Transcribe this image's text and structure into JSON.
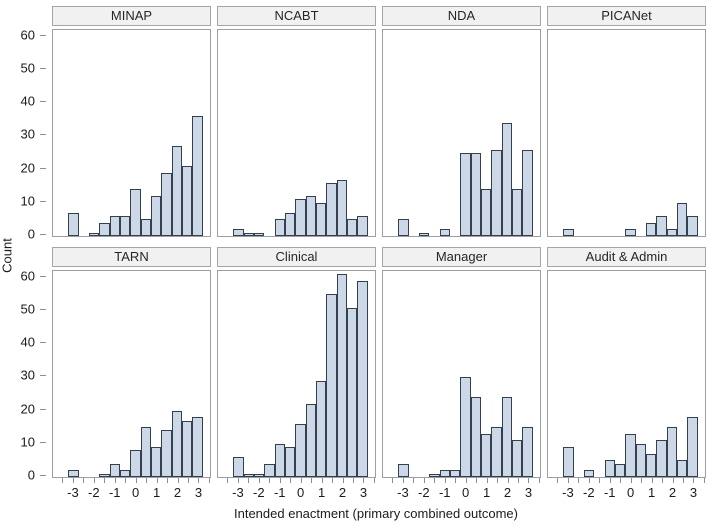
{
  "figure": {
    "y_axis_title": "Count",
    "x_axis_title": "Intended enactment (primary combined outcome)"
  },
  "chart_data": {
    "type": "bar",
    "subtype": "histogram-lattice",
    "layout": "2 rows x 4 columns of panels, shared axes",
    "xlabel": "Intended enactment (primary combined outcome)",
    "ylabel": "Count",
    "x": [
      -3,
      -2.5,
      -2,
      -1.5,
      -1,
      -0.5,
      0,
      0.5,
      1,
      1.5,
      2,
      2.5,
      3
    ],
    "bin_width": 0.5,
    "x_tick_labels": [
      "-3",
      "-2",
      "-1",
      "0",
      "1",
      "2",
      "3"
    ],
    "x_major_ticks": [
      -3,
      -2,
      -1,
      0,
      1,
      2,
      3
    ],
    "x_minor_tick_step": 0.5,
    "x_range": [
      -4,
      3.6
    ],
    "yticks": [
      0,
      10,
      20,
      30,
      40,
      50,
      60
    ],
    "ylim": [
      0,
      62
    ],
    "grid": "off",
    "bar_fill": "#ccd8e7",
    "bar_stroke": "#36404d",
    "header_fill": "#f1f1f1",
    "frame_stroke": "#9aa0a5",
    "series": [
      {
        "name": "MINAP",
        "values": [
          7,
          0,
          1,
          4,
          6,
          6,
          14,
          5,
          12,
          19,
          27,
          21,
          36
        ]
      },
      {
        "name": "NCABT",
        "values": [
          2,
          1,
          1,
          0,
          5,
          7,
          11,
          12,
          10,
          16,
          17,
          5,
          6
        ]
      },
      {
        "name": "NDA",
        "values": [
          5,
          0,
          1,
          0,
          2,
          0,
          25,
          25,
          14,
          26,
          34,
          14,
          26
        ]
      },
      {
        "name": "PICANet",
        "values": [
          2,
          0,
          0,
          0,
          0,
          0,
          2,
          0,
          4,
          6,
          2,
          10,
          6
        ]
      },
      {
        "name": "TARN",
        "values": [
          2,
          0,
          0,
          1,
          4,
          2,
          8,
          15,
          9,
          14,
          20,
          17,
          18
        ]
      },
      {
        "name": "Clinical",
        "values": [
          6,
          1,
          1,
          4,
          10,
          9,
          16,
          22,
          29,
          55,
          61,
          51,
          59
        ]
      },
      {
        "name": "Manager",
        "values": [
          4,
          0,
          0,
          1,
          2,
          2,
          30,
          24,
          13,
          15,
          24,
          11,
          15
        ]
      },
      {
        "name": "Audit & Admin",
        "values": [
          9,
          0,
          2,
          0,
          5,
          4,
          13,
          10,
          7,
          11,
          15,
          5,
          18
        ]
      }
    ]
  }
}
